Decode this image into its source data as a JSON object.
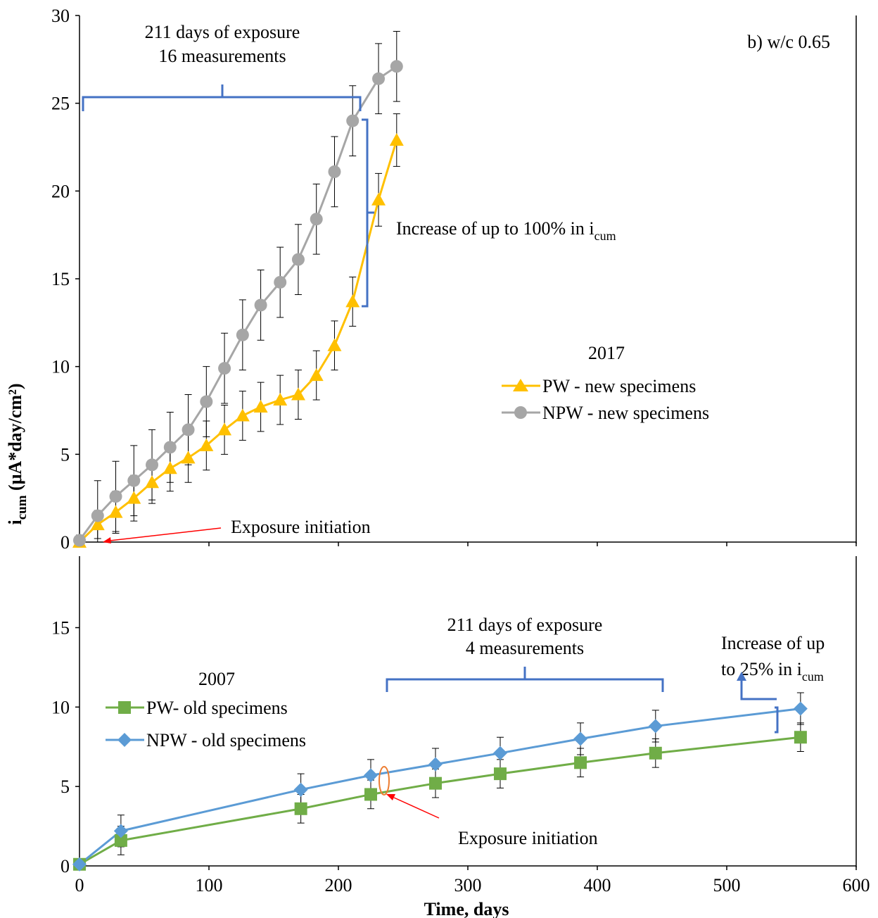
{
  "chart_data": [
    {
      "type": "line",
      "panel_label": "b)  w/c 0.65",
      "x_ticks": [
        "0",
        "100",
        "200",
        "300",
        "400",
        "500",
        "600"
      ],
      "y_ticks": [
        "0",
        "5",
        "10",
        "15",
        "20",
        "25",
        "30"
      ],
      "ylim": [
        0,
        30
      ],
      "ylabel_main": "i",
      "ylabel_sub": "cum",
      "ylabel_rest": " (μA*day/cm²)",
      "legend_title": "2017",
      "legend_placement": "right",
      "annotations": {
        "top_line1": "211 days of exposure",
        "top_line2": "16 measurements",
        "increase_main": "Increase of up to 100% in i",
        "increase_sub": "cum",
        "exposure": "Exposure initiation"
      },
      "series": [
        {
          "name": "PW - new specimens",
          "color": "#FFC000",
          "marker": "triangle",
          "x": [
            0,
            14,
            28,
            42,
            56,
            70,
            84,
            98,
            112,
            126,
            140,
            155,
            169,
            183,
            197,
            211,
            231,
            245
          ],
          "y": [
            0.0,
            1.0,
            1.7,
            2.5,
            3.4,
            4.2,
            4.8,
            5.5,
            6.4,
            7.2,
            7.7,
            8.1,
            8.4,
            9.5,
            11.2,
            13.7,
            19.5,
            22.9
          ],
          "err": [
            0.3,
            0.8,
            1.2,
            1.3,
            1.2,
            1.3,
            1.4,
            1.4,
            1.4,
            1.4,
            1.4,
            1.4,
            1.4,
            1.4,
            1.4,
            1.4,
            1.5,
            1.5
          ]
        },
        {
          "name": "NPW - new specimens",
          "color": "#A6A6A6",
          "marker": "circle",
          "x": [
            0,
            14,
            28,
            42,
            56,
            70,
            84,
            98,
            112,
            126,
            140,
            155,
            169,
            183,
            197,
            211,
            231,
            245
          ],
          "y": [
            0.1,
            1.5,
            2.6,
            3.5,
            4.4,
            5.4,
            6.4,
            8.0,
            9.9,
            11.8,
            13.5,
            14.8,
            16.1,
            18.4,
            21.1,
            24.0,
            26.4,
            27.1
          ],
          "err": [
            0.3,
            2.0,
            2.0,
            2.0,
            2.0,
            2.0,
            2.0,
            2.0,
            2.0,
            2.0,
            2.0,
            2.0,
            2.0,
            2.0,
            2.0,
            2.0,
            2.0,
            2.0
          ]
        }
      ]
    },
    {
      "type": "line",
      "x_ticks": [
        "0",
        "100",
        "200",
        "300",
        "400",
        "500",
        "600"
      ],
      "y_ticks": [
        "0",
        "5",
        "10",
        "15"
      ],
      "xlim": [
        0,
        600
      ],
      "ylim": [
        0,
        19.5
      ],
      "xlabel": "Time, days",
      "legend_title": "2007",
      "legend_placement": "left",
      "annotations": {
        "mid_line1": "211 days of exposure",
        "mid_line2": "4 measurements",
        "increase_line1": "Increase of up",
        "increase_line2_main": "to 25% in i",
        "increase_line2_sub": "cum",
        "exposure": "Exposure initiation"
      },
      "series": [
        {
          "name": "PW- old specimens",
          "color": "#70AD47",
          "marker": "square",
          "x": [
            0,
            32,
            171,
            225,
            275,
            325,
            387,
            445,
            557
          ],
          "y": [
            0.1,
            1.6,
            3.6,
            4.5,
            5.2,
            5.8,
            6.5,
            7.1,
            8.1
          ],
          "err": [
            0.3,
            0.9,
            0.9,
            0.9,
            0.9,
            0.9,
            0.9,
            0.9,
            0.9
          ]
        },
        {
          "name": "NPW - old specimens",
          "color": "#5B9BD5",
          "marker": "diamond",
          "x": [
            0,
            32,
            171,
            225,
            275,
            325,
            387,
            445,
            557
          ],
          "y": [
            0.1,
            2.2,
            4.8,
            5.7,
            6.4,
            7.1,
            8.0,
            8.8,
            9.9
          ],
          "err": [
            0.3,
            1.0,
            1.0,
            1.0,
            1.0,
            1.0,
            1.0,
            1.0,
            1.0
          ]
        }
      ]
    }
  ]
}
